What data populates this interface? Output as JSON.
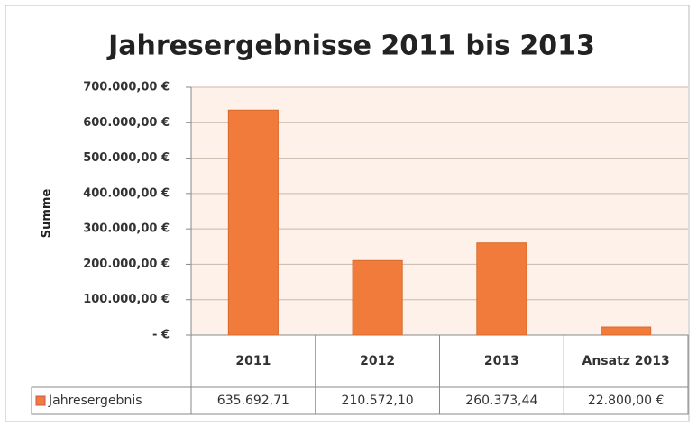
{
  "chart_data": {
    "type": "bar",
    "title": "Jahresergebnisse 2011 bis 2013",
    "y_label": "Summe",
    "categories": [
      "2011",
      "2012",
      "2013",
      "Ansatz 2013"
    ],
    "series": [
      {
        "name": "Jahresergebnis",
        "color": "#f07b3a",
        "values": [
          635692.71,
          210572.1,
          260373.44,
          22800
        ],
        "value_labels": [
          "635.692,71",
          "210.572,10",
          "260.373,44",
          "22.800,00 €"
        ]
      }
    ],
    "ylim": [
      0,
      700000
    ],
    "yticks": [
      {
        "value": 0,
        "label": "-   €"
      },
      {
        "value": 100000,
        "label": "100.000,00 €"
      },
      {
        "value": 200000,
        "label": "200.000,00 €"
      },
      {
        "value": 300000,
        "label": "300.000,00 €"
      },
      {
        "value": 400000,
        "label": "400.000,00 €"
      },
      {
        "value": 500000,
        "label": "500.000,00 €"
      },
      {
        "value": 600000,
        "label": "600.000,00 €"
      },
      {
        "value": 700000,
        "label": "700.000,00 €"
      }
    ],
    "grid": true
  }
}
